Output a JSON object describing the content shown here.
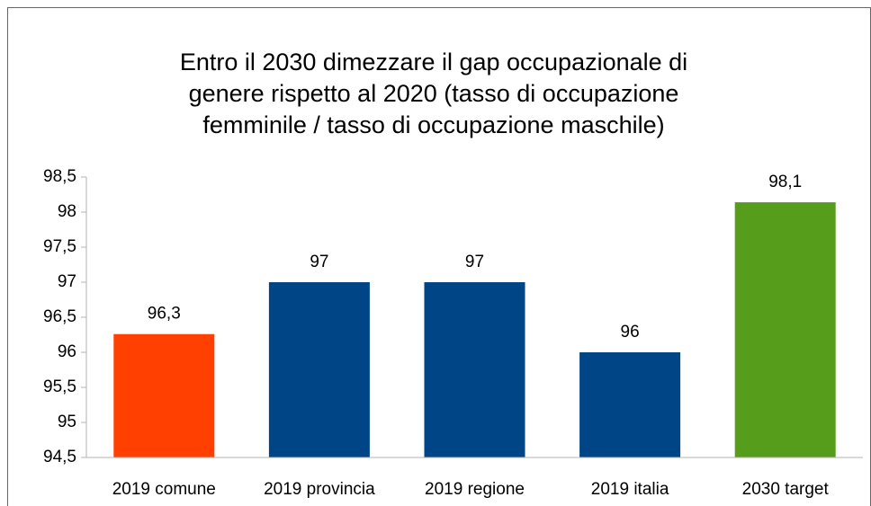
{
  "chart_data": {
    "type": "bar",
    "title": [
      "Entro il 2030 dimezzare il gap occupazionale di",
      "genere rispetto al 2020 (tasso di occupazione",
      "femminile / tasso di occupazione maschile)"
    ],
    "categories": [
      "2019 comune",
      "2019 provincia",
      "2019 regione",
      "2019 italia",
      "2030 target"
    ],
    "values": [
      96.26,
      97,
      97,
      96,
      98.14
    ],
    "value_labels": [
      "96,3",
      "97",
      "97",
      "96",
      "98,1"
    ],
    "colors": [
      "#ff4000",
      "#004586",
      "#004586",
      "#004586",
      "#579d1c"
    ],
    "ylim": [
      94.5,
      98.5
    ],
    "yticks": [
      {
        "value": 94.5,
        "label": "94,5"
      },
      95,
      {
        "value": 95.5,
        "label": "95,5"
      },
      96,
      {
        "value": 96.5,
        "label": "96,5"
      },
      97,
      {
        "value": 97.5,
        "label": "97,5"
      },
      98,
      {
        "value": 98.5,
        "label": "98,5"
      }
    ],
    "grid": false
  }
}
